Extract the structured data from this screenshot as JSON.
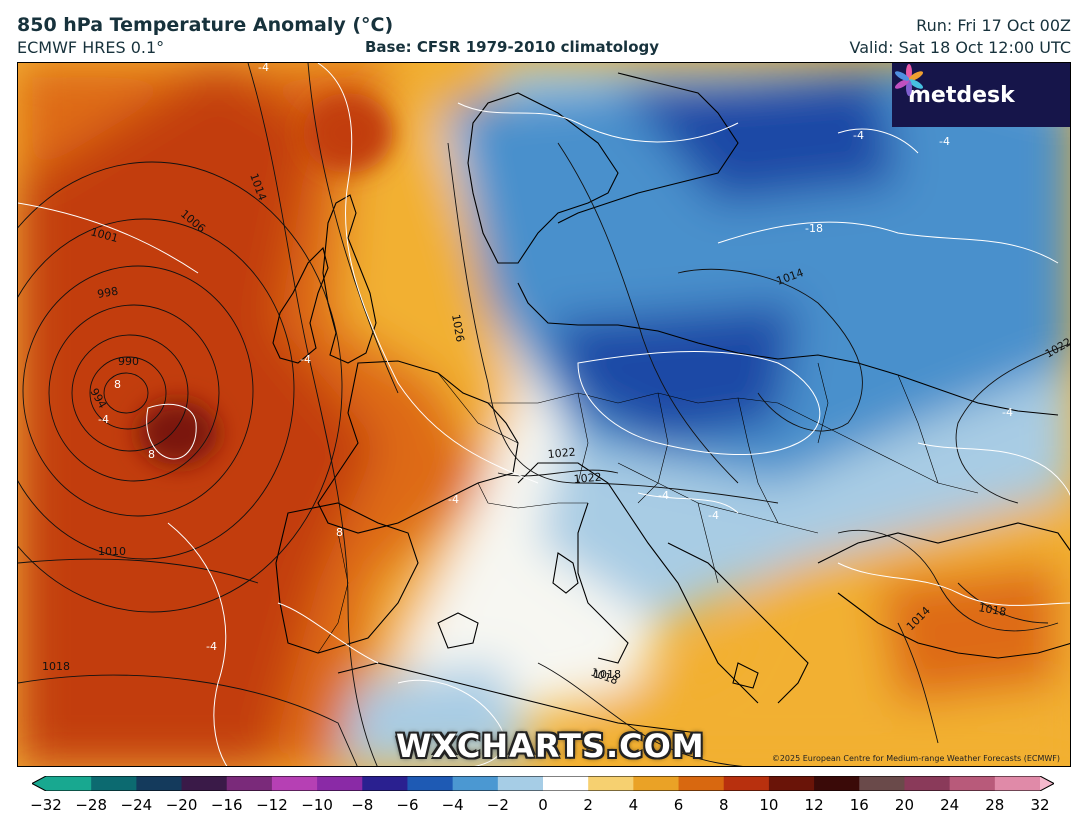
{
  "header": {
    "title": "850 hPa Temperature Anomaly (°C)",
    "model": "ECMWF HRES 0.1°",
    "base": "Base: CFSR 1979-2010 climatology",
    "run": "Run: Fri 17 Oct 00Z",
    "valid": "Valid: Sat 18 Oct 12:00 UTC"
  },
  "logo": {
    "text": "metdesk",
    "icon": "flower-icon"
  },
  "watermark": "WXCHARTS.COM",
  "credit": "©2025 European Centre for Medium-range Weather Forecasts (ECMWF)",
  "isobar_labels": [
    "1014",
    "1006",
    "1001",
    "998",
    "990",
    "994",
    "1010",
    "1018",
    "1026",
    "1014",
    "1022",
    "1022",
    "1022",
    "1018",
    "1018",
    "1018",
    "1014"
  ],
  "anomaly_labels": [
    "8",
    "8",
    "8",
    "-4",
    "-4",
    "-4",
    "-4",
    "-4",
    "-4",
    "-4",
    "-4",
    "-4",
    "-4",
    "-18"
  ],
  "colorbar": {
    "ticks": [
      "−32",
      "−28",
      "−24",
      "−20",
      "−16",
      "−12",
      "−10",
      "−8",
      "−6",
      "−4",
      "−2",
      "0",
      "2",
      "4",
      "6",
      "8",
      "10",
      "12",
      "16",
      "20",
      "24",
      "28",
      "32"
    ],
    "colors": [
      "#18a890",
      "#0c6a70",
      "#143a5c",
      "#3a1a48",
      "#7a2a7a",
      "#b640b4",
      "#8a2aa6",
      "#2a2090",
      "#1e5ab4",
      "#4b98d2",
      "#a6cde6",
      "#ffffff",
      "#f6d070",
      "#eaa226",
      "#d86810",
      "#b8300e",
      "#6a1408",
      "#3a0a08",
      "#6a4a4a",
      "#8a3a5a",
      "#b85a7a",
      "#e08aa8",
      "#f4b8cc"
    ]
  },
  "map_colors": {
    "warm_core": "#7a1408",
    "warm_strong": "#c23c0c",
    "warm": "#de6a14",
    "warm_light": "#f2b030",
    "neutral": "#f7f7f2",
    "cool_light": "#a8cce4",
    "cool": "#4a90cc",
    "cool_strong": "#1a4aa6",
    "land_line": "#000000",
    "isobar": "#111111",
    "anomaly_contour": "#ffffff"
  }
}
